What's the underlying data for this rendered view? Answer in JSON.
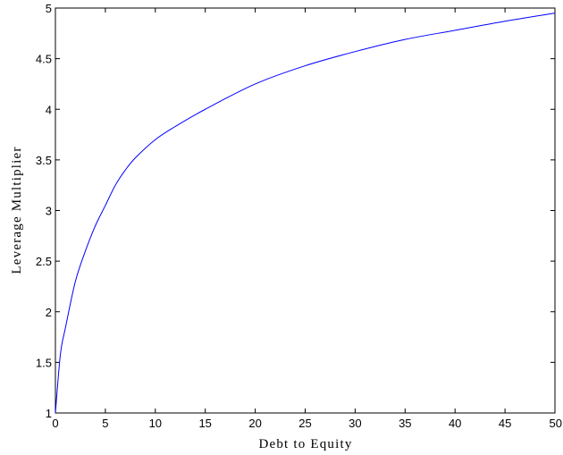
{
  "chart_data": {
    "type": "line",
    "title": "",
    "xlabel": "Debt to Equity",
    "ylabel": "Leverage Multiplier",
    "xlim": [
      0,
      50
    ],
    "ylim": [
      1,
      5
    ],
    "xticks": [
      0,
      5,
      10,
      15,
      20,
      25,
      30,
      35,
      40,
      45,
      50
    ],
    "yticks": [
      1,
      1.5,
      2,
      2.5,
      3,
      3.5,
      4,
      4.5,
      5
    ],
    "xtick_labels": [
      "0",
      "5",
      "10",
      "15",
      "20",
      "25",
      "30",
      "35",
      "40",
      "45",
      "50"
    ],
    "ytick_labels": [
      "1",
      "1.5",
      "2",
      "2.5",
      "3",
      "3.5",
      "4",
      "4.5",
      "5"
    ],
    "grid": false,
    "legend": "none",
    "series": [
      {
        "color": "#0000ff",
        "x": [
          0,
          0.5,
          1,
          2,
          3,
          4,
          5,
          6,
          7,
          8,
          10,
          12,
          15,
          20,
          25,
          30,
          35,
          40,
          45,
          50
        ],
        "y": [
          1.0,
          1.58,
          1.84,
          2.3,
          2.6,
          2.85,
          3.05,
          3.25,
          3.4,
          3.52,
          3.7,
          3.83,
          4.0,
          4.25,
          4.43,
          4.57,
          4.69,
          4.78,
          4.87,
          4.95
        ]
      }
    ]
  }
}
